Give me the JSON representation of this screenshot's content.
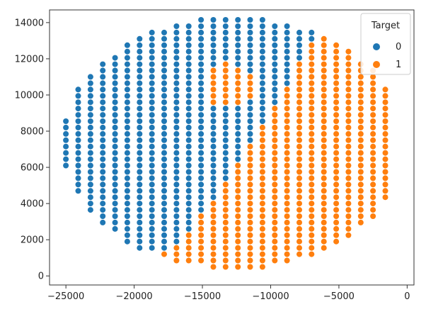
{
  "chart_data": {
    "type": "scatter",
    "title": "",
    "xlabel": "",
    "ylabel": "",
    "xlim": [
      -26200,
      500
    ],
    "ylim": [
      -500,
      14700
    ],
    "xticks": [
      -25000,
      -20000,
      -15000,
      -10000,
      -5000,
      0
    ],
    "xtick_labels": [
      "−25000",
      "−20000",
      "−15000",
      "−10000",
      "−5000",
      "0"
    ],
    "yticks": [
      0,
      2000,
      4000,
      6000,
      8000,
      10000,
      12000,
      14000
    ],
    "ytick_labels": [
      "0",
      "2000",
      "4000",
      "6000",
      "8000",
      "10000",
      "12000",
      "14000"
    ],
    "grid": false,
    "legend": {
      "title": "Target",
      "position": "top-right",
      "entries": [
        {
          "label": "0",
          "color": "#1f77b4"
        },
        {
          "label": "1",
          "color": "#ff7f0e"
        }
      ]
    },
    "grid_points": {
      "x_start": -25000,
      "x_step": 900,
      "x_count": 27,
      "y_start": 500,
      "y_step": 350,
      "y_count": 40,
      "ellipse": {
        "cx": -12700,
        "cy": 7350,
        "rx": 12600,
        "ry": 6950
      },
      "class_1_region_description": "lower-right half plus an island near (-13000, 10500)"
    },
    "series": [
      {
        "name": "0",
        "color": "#1f77b4"
      },
      {
        "name": "1",
        "color": "#ff7f0e"
      }
    ]
  }
}
